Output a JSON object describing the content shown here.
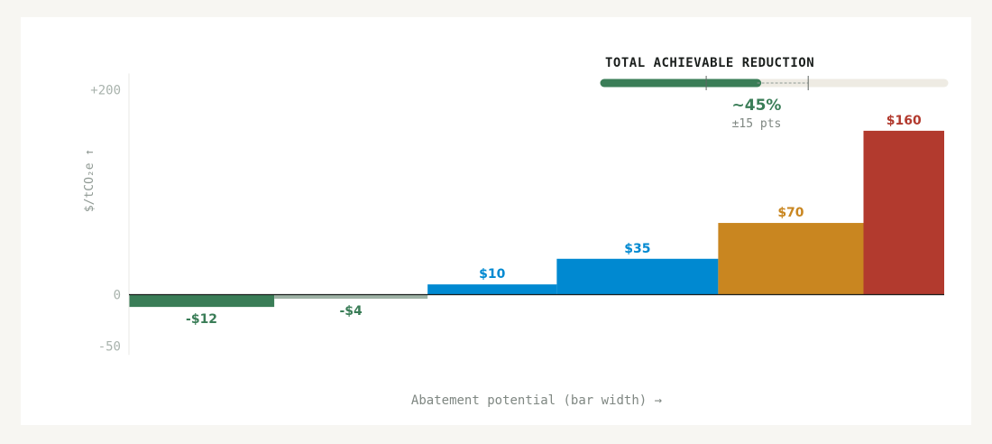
{
  "chart_data": {
    "type": "bar",
    "variant": "marginal-abatement-cost-curve",
    "ylabel": "$/tCO₂e ↑",
    "xlabel": "Abatement potential (bar width) →",
    "ylim": [
      -50,
      200
    ],
    "y_ticks": [
      {
        "value": 200,
        "label": "+200"
      },
      {
        "value": 0,
        "label": "0"
      },
      {
        "value": -50,
        "label": "-50"
      }
    ],
    "bars": [
      {
        "value": -12,
        "label": "-$12",
        "width": 18,
        "color": "#3a7d57"
      },
      {
        "value": -4,
        "label": "-$4",
        "width": 19,
        "color": "#9fb3a6"
      },
      {
        "value": 10,
        "label": "$10",
        "width": 16,
        "color": "#0089d1"
      },
      {
        "value": 35,
        "label": "$35",
        "width": 20,
        "color": "#0089d1"
      },
      {
        "value": 70,
        "label": "$70",
        "width": 18,
        "color": "#c98620"
      },
      {
        "value": 160,
        "label": "$160",
        "width": 10,
        "color": "#b23a2e"
      }
    ],
    "total_reduction": {
      "title": "TOTAL ACHIEVABLE REDUCTION",
      "value_label": "~45%",
      "uncertainty_label": "±15 pts",
      "value": 45,
      "low": 30,
      "high": 60
    },
    "colors": {
      "axis": "#1b1f1d",
      "gridline": "#e8e8e4",
      "track": "#eeebe3",
      "fill": "#3a7d57"
    }
  }
}
